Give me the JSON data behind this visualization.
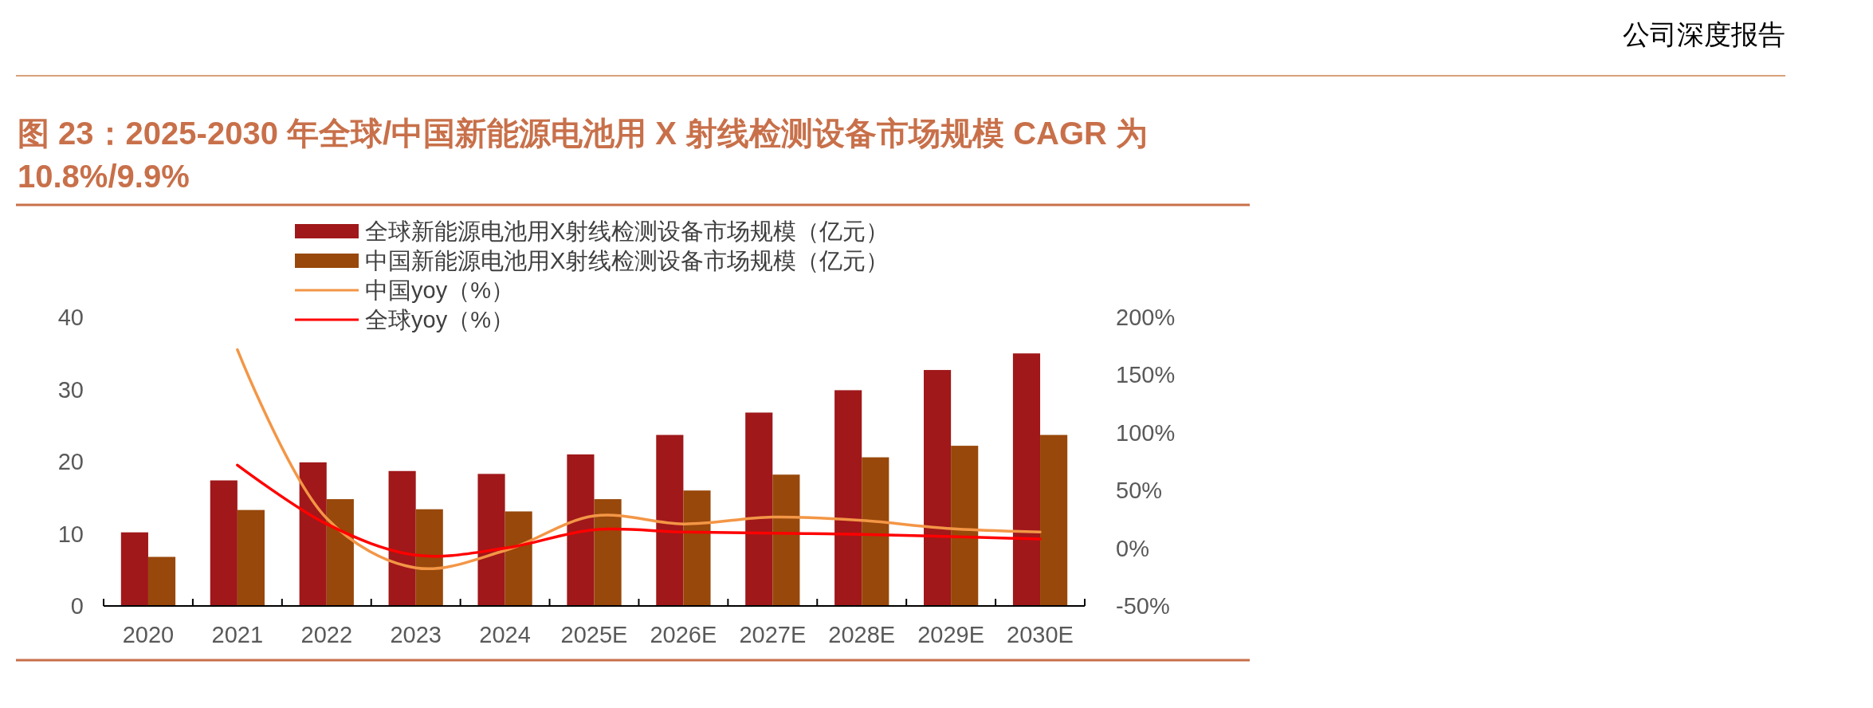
{
  "chart_data": {
    "type": "bar",
    "title": "图 23：2025-2030 年全球/中国新能源电池用 X 射线检测设备市场规模 CAGR 为 10.8%/9.9%",
    "annotations": [
      "公司深度报告"
    ],
    "categories": [
      "2020",
      "2021",
      "2022",
      "2023",
      "2024",
      "2025E",
      "2026E",
      "2027E",
      "2028E",
      "2029E",
      "2030E"
    ],
    "series": [
      {
        "name": "全球新能源电池用X射线检测设备市场规模（亿元）",
        "color": "#a0181a",
        "values": [
          10.2,
          17.4,
          19.9,
          18.7,
          18.3,
          21.0,
          23.7,
          26.8,
          29.9,
          32.7,
          35.0
        ]
      },
      {
        "name": "中国新能源电池用X射线检测设备市场规模（亿元）",
        "color": "#98480a",
        "values": [
          6.8,
          13.3,
          14.8,
          13.4,
          13.1,
          14.8,
          16.0,
          18.2,
          20.6,
          22.2,
          23.7
        ]
      },
      {
        "name": "中国yoy（%）",
        "type": "line",
        "axis": "y2",
        "color": "#f39646",
        "values": [
          null,
          172,
          26,
          -17,
          -2,
          28,
          21,
          27,
          24,
          17,
          14
        ]
      },
      {
        "name": "全球yoy（%）",
        "type": "line",
        "axis": "y2",
        "color": "#ff0000",
        "values": [
          null,
          72,
          21,
          -6,
          0,
          16,
          14,
          13,
          12,
          10,
          8
        ]
      }
    ],
    "ylim": [
      0,
      40
    ],
    "yticks": [
      0,
      10,
      20,
      30,
      40
    ],
    "y2lim": [
      -50,
      200
    ],
    "y2ticks": [
      {
        "value": -50,
        "label": "-50%"
      },
      {
        "value": 0,
        "label": "0%"
      },
      {
        "value": 50,
        "label": "50%"
      },
      {
        "value": 100,
        "label": "100%"
      },
      {
        "value": 150,
        "label": "150%"
      },
      {
        "value": 200,
        "label": "200%"
      }
    ],
    "legend": "top",
    "grid": false
  }
}
